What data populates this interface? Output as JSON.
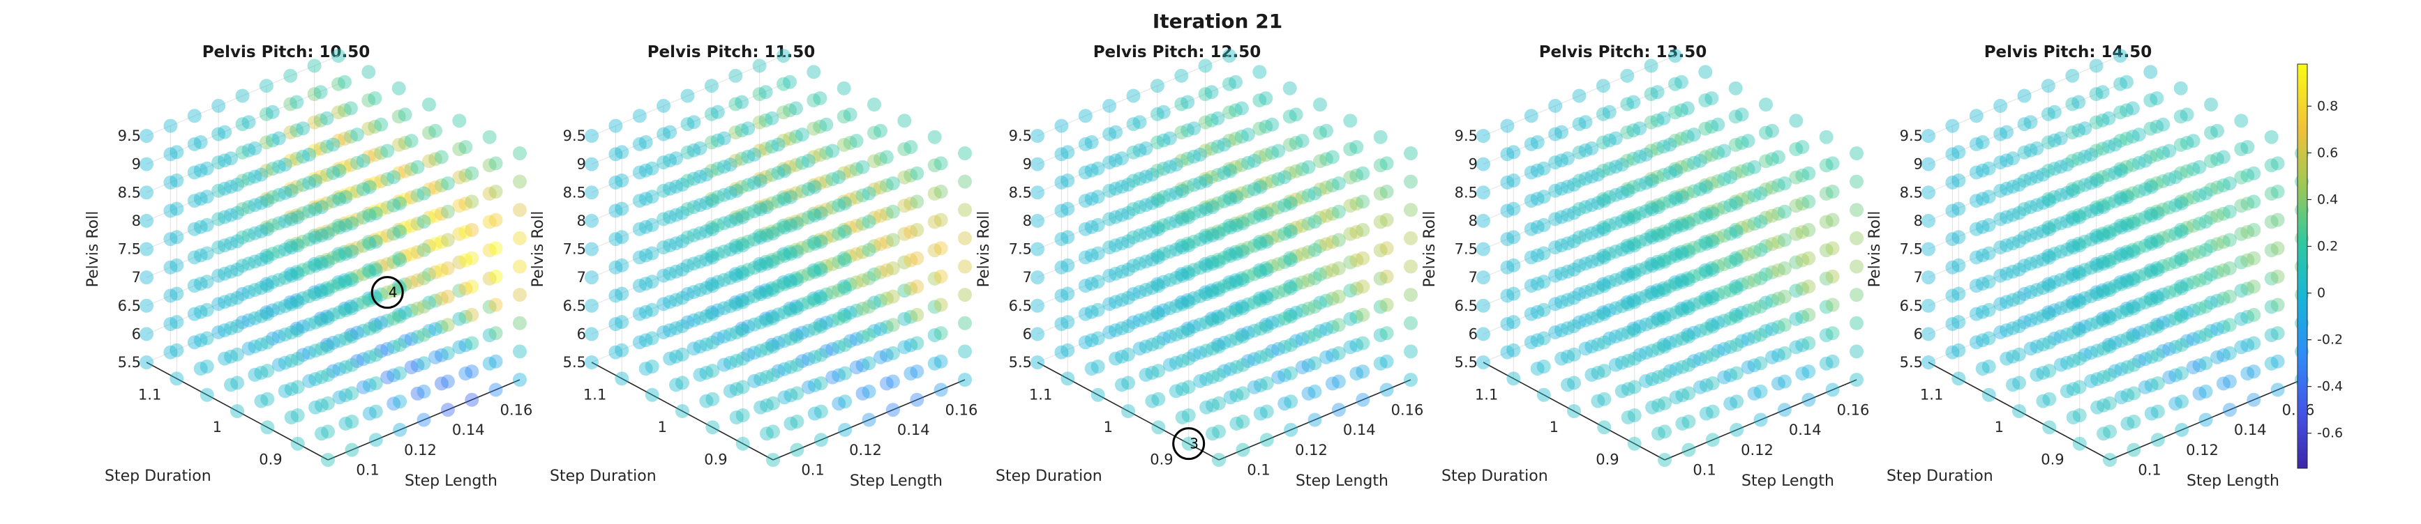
{
  "figure": {
    "title": "Iteration 21"
  },
  "chart_data": {
    "type": "scatter",
    "subtype": "3d-scatter-grid",
    "title": "Iteration 21",
    "axes": {
      "x": {
        "label": "Step Length",
        "ticks": [
          0.1,
          0.12,
          0.14,
          0.16
        ],
        "range": [
          0.09,
          0.17
        ]
      },
      "y": {
        "label": "Step Duration",
        "ticks": [
          0.9,
          1,
          1.1
        ],
        "range": [
          0.85,
          1.15
        ]
      },
      "z": {
        "label": "Pelvis Roll",
        "ticks": [
          5.5,
          6,
          6.5,
          7,
          7.5,
          8,
          8.5,
          9,
          9.5
        ],
        "range": [
          5.5,
          9.5
        ]
      }
    },
    "grid_levels": {
      "step_length": [
        0.09,
        0.1,
        0.11,
        0.12,
        0.13,
        0.14,
        0.15,
        0.16,
        0.17
      ],
      "step_duration": [
        0.85,
        0.9,
        0.95,
        1.0,
        1.05,
        1.1,
        1.15
      ],
      "pelvis_roll": [
        5.5,
        6.0,
        6.5,
        7.0,
        7.5,
        8.0,
        8.5,
        9.0,
        9.5
      ]
    },
    "colorbar": {
      "colormap": "parula",
      "range": [
        -0.75,
        0.98
      ],
      "ticks": [
        -0.6,
        -0.4,
        -0.2,
        0,
        0.2,
        0.4,
        0.6,
        0.8
      ]
    },
    "panels": [
      {
        "title": "Pelvis Pitch: 10.50",
        "pelvis_pitch": 10.5,
        "peak": 0.95,
        "low": -0.6,
        "annotation": {
          "label": "4",
          "step_length": 0.14,
          "step_duration": 0.95,
          "pelvis_roll": 7.0
        }
      },
      {
        "title": "Pelvis Pitch: 11.50",
        "pelvis_pitch": 11.5,
        "peak": 0.7,
        "low": -0.45
      },
      {
        "title": "Pelvis Pitch: 12.50",
        "pelvis_pitch": 12.5,
        "peak": 0.55,
        "low": -0.3,
        "annotation": {
          "label": "3",
          "step_length": 0.09,
          "step_duration": 0.9,
          "pelvis_roll": 5.5
        }
      },
      {
        "title": "Pelvis Pitch: 13.50",
        "pelvis_pitch": 13.5,
        "peak": 0.45,
        "low": -0.2
      },
      {
        "title": "Pelvis Pitch: 14.50",
        "pelvis_pitch": 14.5,
        "peak": 0.35,
        "low": -0.3
      }
    ],
    "grid": true,
    "legend": "colorbar-right"
  }
}
